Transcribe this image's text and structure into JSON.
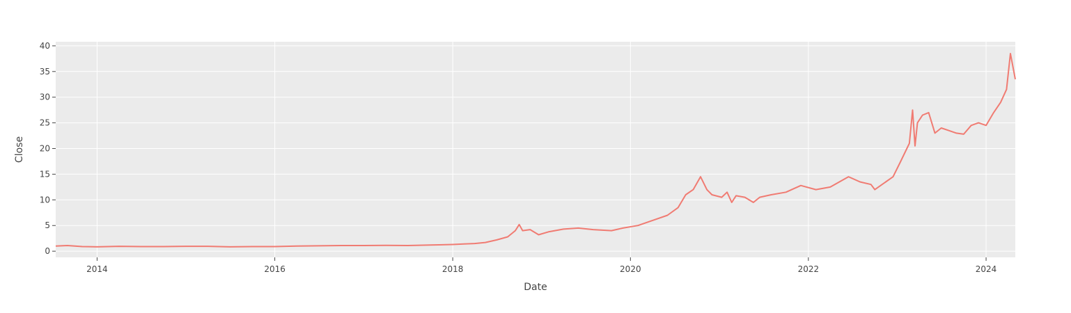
{
  "chart_data": {
    "type": "line",
    "xlabel": "Date",
    "ylabel": "Close",
    "x_ticks": [
      "2014",
      "2016",
      "2018",
      "2020",
      "2022",
      "2024"
    ],
    "y_ticks": [
      0,
      5,
      10,
      15,
      20,
      25,
      30,
      35,
      40
    ],
    "xlim": [
      "2013-07-15",
      "2024-04-30"
    ],
    "ylim": [
      -1.2,
      40.8
    ],
    "grid": true,
    "series": [
      {
        "color": "#f07b72",
        "x": [
          "2013-07-15",
          "2013-09-01",
          "2013-11-01",
          "2014-01-01",
          "2014-04-01",
          "2014-07-01",
          "2014-10-01",
          "2015-01-01",
          "2015-04-01",
          "2015-07-01",
          "2015-10-01",
          "2016-01-01",
          "2016-04-01",
          "2016-07-01",
          "2016-10-01",
          "2017-01-01",
          "2017-04-01",
          "2017-07-01",
          "2017-10-01",
          "2018-01-01",
          "2018-02-15",
          "2018-04-01",
          "2018-05-15",
          "2018-07-01",
          "2018-08-15",
          "2018-09-15",
          "2018-10-01",
          "2018-10-15",
          "2018-11-15",
          "2018-12-20",
          "2019-02-01",
          "2019-04-01",
          "2019-06-01",
          "2019-08-01",
          "2019-10-15",
          "2019-12-01",
          "2020-02-01",
          "2020-04-01",
          "2020-06-01",
          "2020-07-15",
          "2020-08-15",
          "2020-09-15",
          "2020-10-15",
          "2020-11-10",
          "2020-12-01",
          "2021-01-10",
          "2021-02-01",
          "2021-02-20",
          "2021-03-10",
          "2021-04-15",
          "2021-05-20",
          "2021-06-15",
          "2021-08-01",
          "2021-10-01",
          "2021-12-01",
          "2022-02-01",
          "2022-04-01",
          "2022-06-15",
          "2022-08-01",
          "2022-09-15",
          "2022-10-01",
          "2022-11-15",
          "2022-12-15",
          "2023-01-15",
          "2023-02-20",
          "2023-03-05",
          "2023-03-15",
          "2023-03-25",
          "2023-04-15",
          "2023-05-10",
          "2023-06-05",
          "2023-07-01",
          "2023-08-01",
          "2023-09-01",
          "2023-10-01",
          "2023-11-01",
          "2023-12-01",
          "2024-01-01",
          "2024-02-01",
          "2024-03-01",
          "2024-03-25",
          "2024-04-10",
          "2024-04-20",
          "2024-04-30"
        ],
        "y": [
          1.0,
          1.1,
          0.9,
          0.85,
          0.95,
          0.9,
          0.9,
          0.95,
          0.95,
          0.85,
          0.9,
          0.9,
          1.0,
          1.05,
          1.1,
          1.1,
          1.15,
          1.1,
          1.2,
          1.3,
          1.4,
          1.5,
          1.7,
          2.2,
          2.8,
          4.0,
          5.2,
          4.0,
          4.2,
          3.2,
          3.8,
          4.3,
          4.5,
          4.2,
          4.0,
          4.5,
          5.0,
          6.0,
          7.0,
          8.5,
          11.0,
          12.0,
          14.5,
          12.0,
          11.0,
          10.5,
          11.5,
          9.5,
          10.8,
          10.5,
          9.5,
          10.5,
          11.0,
          11.5,
          12.8,
          12.0,
          12.5,
          14.5,
          13.5,
          13.0,
          12.0,
          13.5,
          14.5,
          17.5,
          21.0,
          27.5,
          20.5,
          25.0,
          26.5,
          27.0,
          23.0,
          24.0,
          23.5,
          23.0,
          22.8,
          24.5,
          25.0,
          24.5,
          27.0,
          29.0,
          31.5,
          38.5,
          36.0,
          33.5
        ]
      }
    ]
  }
}
